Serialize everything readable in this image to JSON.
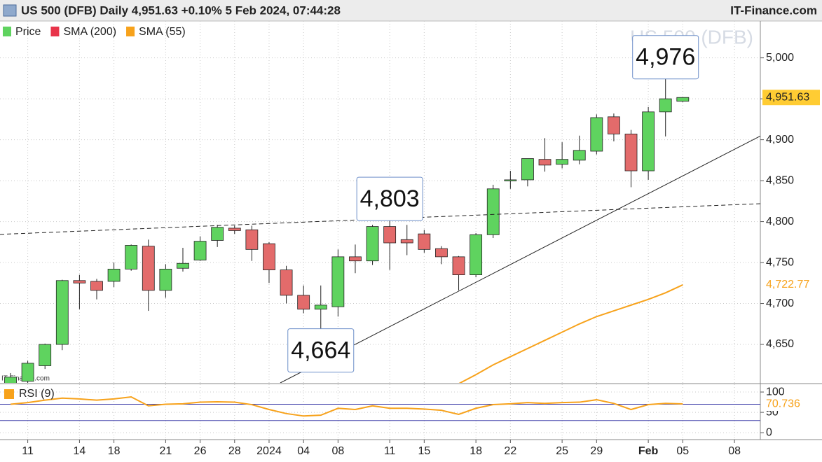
{
  "header": {
    "title": "US 500 (DFB) Daily 4,951.63 +0.10% 5 Feb 2024, 07:44:28",
    "brand": "IT-Finance.com"
  },
  "chart_data": [
    {
      "type": "candlestick",
      "watermark": "US 500 (DFB)",
      "credit": "IT-Finance.com",
      "up_color": "#5fd35f",
      "down_color": "#e36b6b",
      "open": [
        4600,
        4605,
        4624,
        4650,
        4728,
        4727,
        4727,
        4742,
        4770,
        4716,
        4743,
        4753,
        4777,
        4792,
        4790,
        4773,
        4741,
        4710,
        4693,
        4696,
        4757,
        4752,
        4794,
        4778,
        4785,
        4767,
        4757,
        4735,
        4784,
        4850,
        4851,
        4876,
        4870,
        4875,
        4886,
        4928,
        4907,
        4862,
        4934,
        4947
      ],
      "high": [
        4615,
        4630,
        4651,
        4729,
        4735,
        4730,
        4750,
        4772,
        4778,
        4748,
        4768,
        4782,
        4796,
        4795,
        4795,
        4775,
        4746,
        4722,
        4722,
        4766,
        4772,
        4796,
        4803,
        4796,
        4790,
        4770,
        4758,
        4786,
        4845,
        4862,
        4877,
        4902,
        4897,
        4905,
        4931,
        4932,
        4912,
        4940,
        4976,
        4952
      ],
      "low": [
        4590,
        4600,
        4620,
        4643,
        4693,
        4705,
        4720,
        4740,
        4691,
        4707,
        4739,
        4752,
        4769,
        4785,
        4752,
        4725,
        4700,
        4688,
        4664,
        4684,
        4737,
        4747,
        4741,
        4759,
        4762,
        4748,
        4716,
        4732,
        4780,
        4840,
        4843,
        4861,
        4865,
        4870,
        4882,
        4898,
        4842,
        4851,
        4904,
        4946
      ],
      "close": [
        4610,
        4627,
        4650,
        4728,
        4725,
        4716,
        4742,
        4771,
        4716,
        4742,
        4749,
        4776,
        4793,
        4789,
        4766,
        4741,
        4710,
        4693,
        4698,
        4757,
        4752,
        4794,
        4774,
        4774,
        4766,
        4757,
        4735,
        4784,
        4840,
        4851,
        4877,
        4869,
        4876,
        4887,
        4927,
        4907,
        4862,
        4934,
        4950,
        4951.63
      ],
      "series": [
        {
          "name": "Price",
          "color": "#5fd35f"
        },
        {
          "name": "SMA (200)",
          "color": "#e8344a",
          "values": []
        },
        {
          "name": "SMA (55)",
          "color": "#f7a21b",
          "value_label": "4,722.77",
          "values": [
            null,
            null,
            null,
            null,
            null,
            null,
            null,
            null,
            null,
            null,
            null,
            null,
            null,
            null,
            null,
            null,
            null,
            null,
            null,
            null,
            null,
            null,
            null,
            null,
            null,
            null,
            4602,
            4613,
            4625,
            4635,
            4645,
            4655,
            4665,
            4675,
            4684,
            4691,
            4698,
            4705,
            4713,
            4722.77
          ]
        }
      ],
      "last_price": {
        "value": 4951.63,
        "label": "4,951.63",
        "color": "#ffcc33"
      },
      "callouts": [
        {
          "x": 38,
          "value": 4976,
          "label": "4,976",
          "position": "above"
        },
        {
          "x": 22,
          "value": 4803,
          "label": "4,803",
          "position": "above"
        },
        {
          "x": 18,
          "value": 4664,
          "label": "4,664",
          "position": "below"
        }
      ],
      "trendlines": [
        {
          "style": "dashed",
          "x": [
            -0.61,
            43.5
          ],
          "values": [
            4784.4,
            4821.9
          ]
        },
        {
          "style": "solid",
          "x": [
            15.65,
            43.5
          ],
          "values": [
            4603,
            4904.5
          ]
        }
      ],
      "xlim": [
        -0.61,
        43.5
      ],
      "ylim": [
        4603,
        5045
      ],
      "yticks": [
        {
          "value": 4650,
          "label": "4,650"
        },
        {
          "value": 4700,
          "label": "4,700"
        },
        {
          "value": 4750,
          "label": "4,750"
        },
        {
          "value": 4800,
          "label": "4,800"
        },
        {
          "value": 4850,
          "label": "4,850"
        },
        {
          "value": 4900,
          "label": "4,900"
        },
        {
          "value": 4950,
          "label": "4,950"
        },
        {
          "value": 5000,
          "label": "5,000"
        }
      ],
      "xticks": [
        {
          "value": 1,
          "label": "11"
        },
        {
          "value": 4,
          "label": "14"
        },
        {
          "value": 6,
          "label": "18"
        },
        {
          "value": 9,
          "label": "21"
        },
        {
          "value": 11,
          "label": "26"
        },
        {
          "value": 13,
          "label": "28"
        },
        {
          "value": 15,
          "label": "2024"
        },
        {
          "value": 17,
          "label": "04"
        },
        {
          "value": 19,
          "label": "08"
        },
        {
          "value": 22,
          "label": "11"
        },
        {
          "value": 24,
          "label": "15"
        },
        {
          "value": 27,
          "label": "18"
        },
        {
          "value": 29,
          "label": "22"
        },
        {
          "value": 32,
          "label": "25"
        },
        {
          "value": 34,
          "label": "29"
        },
        {
          "value": 37,
          "label": "Feb"
        },
        {
          "value": 39,
          "label": "05"
        },
        {
          "value": 42,
          "label": "08"
        }
      ],
      "grid": true
    },
    {
      "type": "line",
      "series": [
        {
          "name": "RSI (9)",
          "color": "#f7a21b",
          "value_label": "70.736",
          "values": [
            70,
            74,
            80,
            85,
            83,
            80,
            83,
            88,
            66,
            70,
            71,
            75,
            76,
            75,
            69,
            57,
            47,
            41,
            43,
            60,
            57,
            66,
            60,
            60,
            58,
            55,
            45,
            60,
            69,
            71,
            74,
            72,
            74,
            75,
            81,
            72,
            57,
            69,
            72,
            70.736
          ]
        }
      ],
      "levels": [
        70,
        30
      ],
      "level_color": "#3b3ba8",
      "xlim": [
        -0.61,
        43.5
      ],
      "ylim": [
        -17,
        119
      ],
      "yticks": [
        0,
        50,
        100
      ],
      "grid": true
    }
  ]
}
